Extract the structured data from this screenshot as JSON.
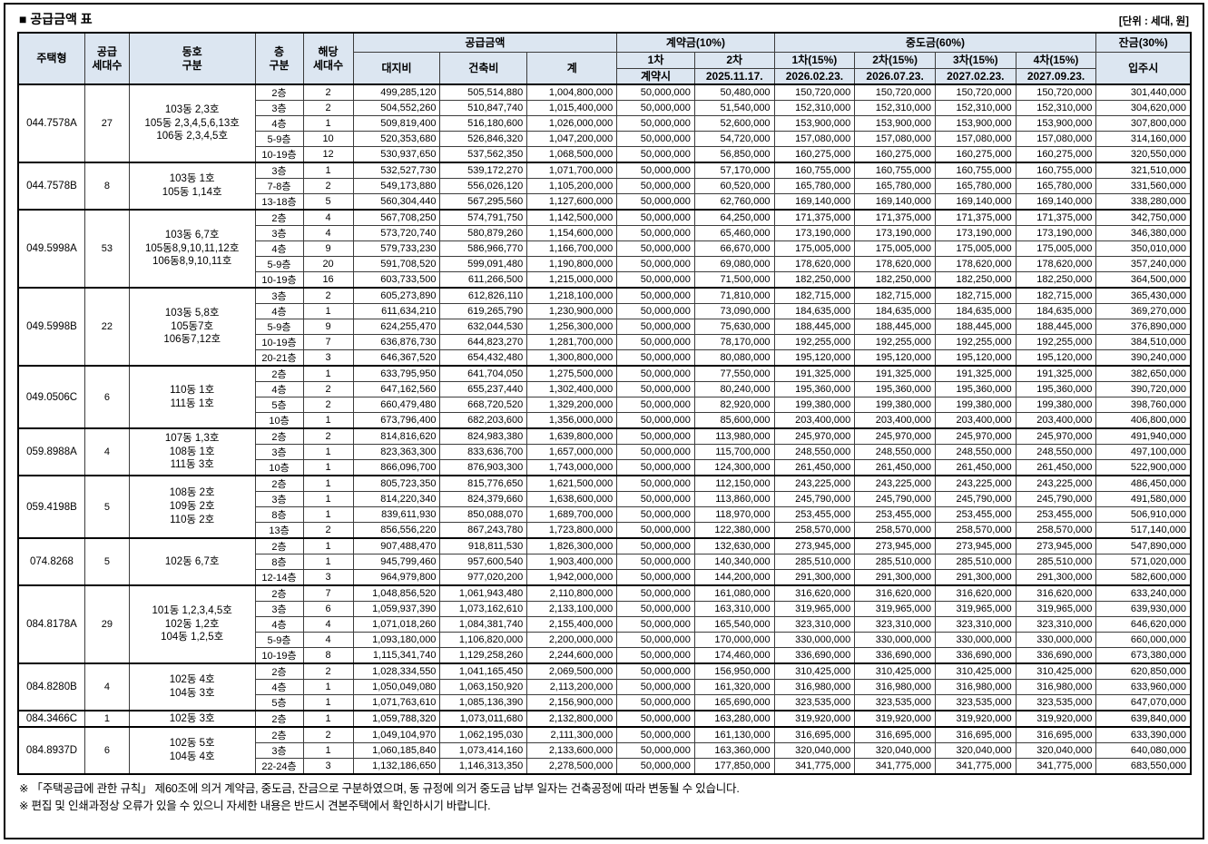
{
  "title": "■ 공급금액 표",
  "unit_label": "[단위 : 세대, 원]",
  "colors": {
    "header_bg": "#dce6f1",
    "grid": "#3c3c3c",
    "border": "#000000"
  },
  "columns": {
    "housing_type": "주택형",
    "supply_count": "공급\n세대수",
    "dongho": "동호\n구분",
    "floor": "층\n구분",
    "unit_count": "해당\n세대수",
    "supply_amount": "공급금액",
    "land": "대지비",
    "building": "건축비",
    "total": "계",
    "contract": "계약금(10%)",
    "contract1_label": "1차",
    "contract1_date": "계약시",
    "contract2_label": "2차",
    "contract2_date": "2025.11.17.",
    "interim": "중도금(60%)",
    "interim1_label": "1차(15%)",
    "interim1_date": "2026.02.23.",
    "interim2_label": "2차(15%)",
    "interim2_date": "2026.07.23.",
    "interim3_label": "3차(15%)",
    "interim3_date": "2027.02.23.",
    "interim4_label": "4차(15%)",
    "interim4_date": "2027.09.23.",
    "balance": "잔금(30%)",
    "balance_date": "입주시"
  },
  "row_columns_key": [
    "floor",
    "unit_count",
    "land_cost",
    "build_cost",
    "total",
    "contract_1st",
    "contract_2nd",
    "interim_each_15pct",
    "balance_30pct"
  ],
  "groups": [
    {
      "type": "044.7578A",
      "supply_count": 27,
      "dongho": [
        "103동 2,3호",
        "105동 2,3,4,5,6,13호",
        "106동 2,3,4,5호"
      ],
      "rows": [
        [
          "2층",
          2,
          499285120,
          505514880,
          1004800000,
          50000000,
          50480000,
          150720000,
          301440000
        ],
        [
          "3층",
          2,
          504552260,
          510847740,
          1015400000,
          50000000,
          51540000,
          152310000,
          304620000
        ],
        [
          "4층",
          1,
          509819400,
          516180600,
          1026000000,
          50000000,
          52600000,
          153900000,
          307800000
        ],
        [
          "5-9층",
          10,
          520353680,
          526846320,
          1047200000,
          50000000,
          54720000,
          157080000,
          314160000
        ],
        [
          "10-19층",
          12,
          530937650,
          537562350,
          1068500000,
          50000000,
          56850000,
          160275000,
          320550000
        ]
      ]
    },
    {
      "type": "044.7578B",
      "supply_count": 8,
      "dongho": [
        "103동 1호",
        "105동 1,14호"
      ],
      "rows": [
        [
          "3층",
          1,
          532527730,
          539172270,
          1071700000,
          50000000,
          57170000,
          160755000,
          321510000
        ],
        [
          "7-8층",
          2,
          549173880,
          556026120,
          1105200000,
          50000000,
          60520000,
          165780000,
          331560000
        ],
        [
          "13-18층",
          5,
          560304440,
          567295560,
          1127600000,
          50000000,
          62760000,
          169140000,
          338280000
        ]
      ]
    },
    {
      "type": "049.5998A",
      "supply_count": 53,
      "dongho": [
        "103동 6,7호",
        "105동8,9,10,11,12호",
        "106동8,9,10,11호"
      ],
      "rows": [
        [
          "2층",
          4,
          567708250,
          574791750,
          1142500000,
          50000000,
          64250000,
          171375000,
          342750000
        ],
        [
          "3층",
          4,
          573720740,
          580879260,
          1154600000,
          50000000,
          65460000,
          173190000,
          346380000
        ],
        [
          "4층",
          9,
          579733230,
          586966770,
          1166700000,
          50000000,
          66670000,
          175005000,
          350010000
        ],
        [
          "5-9층",
          20,
          591708520,
          599091480,
          1190800000,
          50000000,
          69080000,
          178620000,
          357240000
        ],
        [
          "10-19층",
          16,
          603733500,
          611266500,
          1215000000,
          50000000,
          71500000,
          182250000,
          364500000
        ]
      ]
    },
    {
      "type": "049.5998B",
      "supply_count": 22,
      "dongho": [
        "103동 5,8호",
        "105동7호",
        "106동7,12호"
      ],
      "rows": [
        [
          "3층",
          2,
          605273890,
          612826110,
          1218100000,
          50000000,
          71810000,
          182715000,
          365430000
        ],
        [
          "4층",
          1,
          611634210,
          619265790,
          1230900000,
          50000000,
          73090000,
          184635000,
          369270000
        ],
        [
          "5-9층",
          9,
          624255470,
          632044530,
          1256300000,
          50000000,
          75630000,
          188445000,
          376890000
        ],
        [
          "10-19층",
          7,
          636876730,
          644823270,
          1281700000,
          50000000,
          78170000,
          192255000,
          384510000
        ],
        [
          "20-21층",
          3,
          646367520,
          654432480,
          1300800000,
          50000000,
          80080000,
          195120000,
          390240000
        ]
      ]
    },
    {
      "type": "049.0506C",
      "supply_count": 6,
      "dongho": [
        "110동 1호",
        "111동 1호"
      ],
      "rows": [
        [
          "2층",
          1,
          633795950,
          641704050,
          1275500000,
          50000000,
          77550000,
          191325000,
          382650000
        ],
        [
          "4층",
          2,
          647162560,
          655237440,
          1302400000,
          50000000,
          80240000,
          195360000,
          390720000
        ],
        [
          "5층",
          2,
          660479480,
          668720520,
          1329200000,
          50000000,
          82920000,
          199380000,
          398760000
        ],
        [
          "10층",
          1,
          673796400,
          682203600,
          1356000000,
          50000000,
          85600000,
          203400000,
          406800000
        ]
      ]
    },
    {
      "type": "059.8988A",
      "supply_count": 4,
      "dongho": [
        "107동 1,3호",
        "108동 1호",
        "111동 3호"
      ],
      "rows": [
        [
          "2층",
          2,
          814816620,
          824983380,
          1639800000,
          50000000,
          113980000,
          245970000,
          491940000
        ],
        [
          "3층",
          1,
          823363300,
          833636700,
          1657000000,
          50000000,
          115700000,
          248550000,
          497100000
        ],
        [
          "10층",
          1,
          866096700,
          876903300,
          1743000000,
          50000000,
          124300000,
          261450000,
          522900000
        ]
      ]
    },
    {
      "type": "059.4198B",
      "supply_count": 5,
      "dongho": [
        "108동 2호",
        "109동 2호",
        "110동 2호"
      ],
      "rows": [
        [
          "2층",
          1,
          805723350,
          815776650,
          1621500000,
          50000000,
          112150000,
          243225000,
          486450000
        ],
        [
          "3층",
          1,
          814220340,
          824379660,
          1638600000,
          50000000,
          113860000,
          245790000,
          491580000
        ],
        [
          "8층",
          1,
          839611930,
          850088070,
          1689700000,
          50000000,
          118970000,
          253455000,
          506910000
        ],
        [
          "13층",
          2,
          856556220,
          867243780,
          1723800000,
          50000000,
          122380000,
          258570000,
          517140000
        ]
      ]
    },
    {
      "type": "074.8268",
      "supply_count": 5,
      "dongho": [
        "102동 6,7호"
      ],
      "rows": [
        [
          "2층",
          1,
          907488470,
          918811530,
          1826300000,
          50000000,
          132630000,
          273945000,
          547890000
        ],
        [
          "8층",
          1,
          945799460,
          957600540,
          1903400000,
          50000000,
          140340000,
          285510000,
          571020000
        ],
        [
          "12-14층",
          3,
          964979800,
          977020200,
          1942000000,
          50000000,
          144200000,
          291300000,
          582600000
        ]
      ]
    },
    {
      "type": "084.8178A",
      "supply_count": 29,
      "dongho": [
        "101동 1,2,3,4,5호",
        "102동 1,2호",
        "104동 1,2,5호"
      ],
      "rows": [
        [
          "2층",
          7,
          1048856520,
          1061943480,
          2110800000,
          50000000,
          161080000,
          316620000,
          633240000
        ],
        [
          "3층",
          6,
          1059937390,
          1073162610,
          2133100000,
          50000000,
          163310000,
          319965000,
          639930000
        ],
        [
          "4층",
          4,
          1071018260,
          1084381740,
          2155400000,
          50000000,
          165540000,
          323310000,
          646620000
        ],
        [
          "5-9층",
          4,
          1093180000,
          1106820000,
          2200000000,
          50000000,
          170000000,
          330000000,
          660000000
        ],
        [
          "10-19층",
          8,
          1115341740,
          1129258260,
          2244600000,
          50000000,
          174460000,
          336690000,
          673380000
        ]
      ]
    },
    {
      "type": "084.8280B",
      "supply_count": 4,
      "dongho": [
        "102동 4호",
        "104동 3호"
      ],
      "rows": [
        [
          "2층",
          2,
          1028334550,
          1041165450,
          2069500000,
          50000000,
          156950000,
          310425000,
          620850000
        ],
        [
          "4층",
          1,
          1050049080,
          1063150920,
          2113200000,
          50000000,
          161320000,
          316980000,
          633960000
        ],
        [
          "5층",
          1,
          1071763610,
          1085136390,
          2156900000,
          50000000,
          165690000,
          323535000,
          647070000
        ]
      ]
    },
    {
      "type": "084.3466C",
      "supply_count": 1,
      "dongho": [
        "102동 3호"
      ],
      "rows": [
        [
          "2층",
          1,
          1059788320,
          1073011680,
          2132800000,
          50000000,
          163280000,
          319920000,
          639840000
        ]
      ]
    },
    {
      "type": "084.8937D",
      "supply_count": 6,
      "dongho": [
        "102동 5호",
        "104동 4호"
      ],
      "rows": [
        [
          "2층",
          2,
          1049104970,
          1062195030,
          2111300000,
          50000000,
          161130000,
          316695000,
          633390000
        ],
        [
          "3층",
          1,
          1060185840,
          1073414160,
          2133600000,
          50000000,
          163360000,
          320040000,
          640080000
        ],
        [
          "22-24층",
          3,
          1132186650,
          1146313350,
          2278500000,
          50000000,
          177850000,
          341775000,
          683550000
        ]
      ]
    }
  ],
  "notes": [
    "※ 「주택공급에 관한 규칙」 제60조에 의거 계약금, 중도금, 잔금으로 구분하였으며, 동 규정에 의거 중도금 납부 일자는 건축공정에 따라 변동될 수 있습니다.",
    "※ 편집 및 인쇄과정상 오류가 있을 수 있으니 자세한 내용은 반드시 견본주택에서 확인하시기 바랍니다."
  ]
}
